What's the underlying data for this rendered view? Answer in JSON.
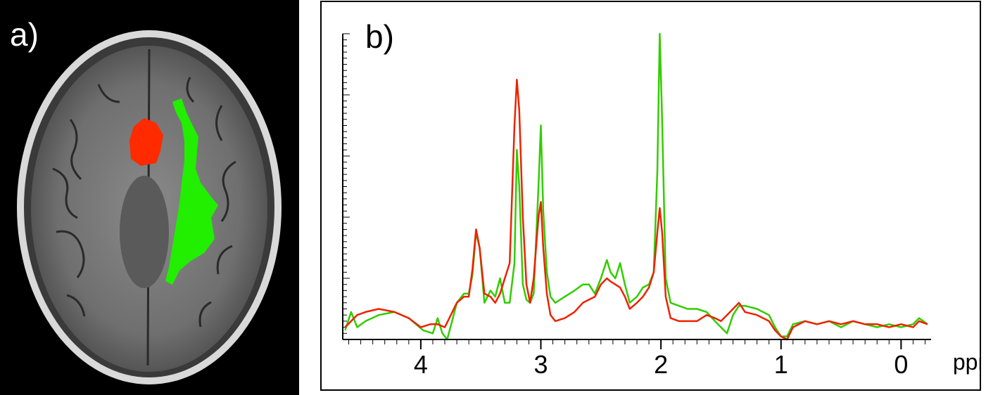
{
  "panel_a": {
    "label": "a)",
    "roi_colors": {
      "red": "#ff2a00",
      "green": "#22ee00"
    }
  },
  "panel_b": {
    "label": "b)"
  },
  "chart_data": {
    "type": "line",
    "title": "",
    "xlabel": "ppm",
    "ylabel": "",
    "x_reversed": true,
    "xlim": [
      4.65,
      -0.25
    ],
    "ylim": [
      0,
      100
    ],
    "xticks": [
      4,
      3,
      2,
      1,
      0
    ],
    "series": [
      {
        "color": "#33cc00",
        "points": [
          [
            4.63,
            3
          ],
          [
            4.58,
            9
          ],
          [
            4.53,
            4
          ],
          [
            4.46,
            6
          ],
          [
            4.35,
            8
          ],
          [
            4.22,
            9
          ],
          [
            4.1,
            7
          ],
          [
            3.98,
            3
          ],
          [
            3.9,
            2
          ],
          [
            3.86,
            7
          ],
          [
            3.82,
            2
          ],
          [
            3.78,
            0
          ],
          [
            3.74,
            6
          ],
          [
            3.7,
            12
          ],
          [
            3.64,
            15
          ],
          [
            3.6,
            15
          ],
          [
            3.57,
            21
          ],
          [
            3.54,
            35
          ],
          [
            3.51,
            30
          ],
          [
            3.47,
            12
          ],
          [
            3.42,
            16
          ],
          [
            3.38,
            14
          ],
          [
            3.34,
            20
          ],
          [
            3.3,
            12
          ],
          [
            3.26,
            12
          ],
          [
            3.22,
            25
          ],
          [
            3.2,
            62
          ],
          [
            3.18,
            50
          ],
          [
            3.15,
            18
          ],
          [
            3.12,
            13
          ],
          [
            3.09,
            12
          ],
          [
            3.06,
            15
          ],
          [
            3.02,
            50
          ],
          [
            3.0,
            70
          ],
          [
            2.98,
            42
          ],
          [
            2.95,
            22
          ],
          [
            2.92,
            14
          ],
          [
            2.88,
            12
          ],
          [
            2.8,
            14
          ],
          [
            2.72,
            16
          ],
          [
            2.65,
            18
          ],
          [
            2.6,
            18
          ],
          [
            2.55,
            15
          ],
          [
            2.5,
            20
          ],
          [
            2.45,
            26
          ],
          [
            2.42,
            22
          ],
          [
            2.38,
            20
          ],
          [
            2.34,
            25
          ],
          [
            2.3,
            18
          ],
          [
            2.26,
            12
          ],
          [
            2.2,
            14
          ],
          [
            2.15,
            17
          ],
          [
            2.1,
            18
          ],
          [
            2.06,
            22
          ],
          [
            2.03,
            55
          ],
          [
            2.01,
            100
          ],
          [
            1.99,
            72
          ],
          [
            1.96,
            20
          ],
          [
            1.92,
            12
          ],
          [
            1.85,
            11
          ],
          [
            1.78,
            10
          ],
          [
            1.7,
            10
          ],
          [
            1.62,
            9
          ],
          [
            1.55,
            6
          ],
          [
            1.5,
            4
          ],
          [
            1.45,
            2
          ],
          [
            1.4,
            8
          ],
          [
            1.35,
            11
          ],
          [
            1.3,
            11
          ],
          [
            1.2,
            10
          ],
          [
            1.1,
            8
          ],
          [
            1.05,
            4
          ],
          [
            1.0,
            1
          ],
          [
            0.95,
            1
          ],
          [
            0.9,
            5
          ],
          [
            0.8,
            6
          ],
          [
            0.7,
            5
          ],
          [
            0.6,
            6
          ],
          [
            0.5,
            4
          ],
          [
            0.4,
            6
          ],
          [
            0.3,
            5
          ],
          [
            0.2,
            4
          ],
          [
            0.1,
            5
          ],
          [
            0.0,
            4
          ],
          [
            -0.1,
            5
          ],
          [
            -0.15,
            7
          ],
          [
            -0.22,
            5
          ]
        ]
      },
      {
        "color": "#ee2200",
        "points": [
          [
            4.63,
            4
          ],
          [
            4.58,
            6
          ],
          [
            4.53,
            8
          ],
          [
            4.46,
            9
          ],
          [
            4.35,
            10
          ],
          [
            4.22,
            9
          ],
          [
            4.1,
            7
          ],
          [
            4.0,
            4
          ],
          [
            3.92,
            5
          ],
          [
            3.86,
            5
          ],
          [
            3.8,
            4
          ],
          [
            3.75,
            8
          ],
          [
            3.7,
            12
          ],
          [
            3.64,
            14
          ],
          [
            3.6,
            14
          ],
          [
            3.57,
            23
          ],
          [
            3.54,
            36
          ],
          [
            3.51,
            30
          ],
          [
            3.47,
            15
          ],
          [
            3.42,
            14
          ],
          [
            3.38,
            12
          ],
          [
            3.34,
            15
          ],
          [
            3.3,
            20
          ],
          [
            3.26,
            25
          ],
          [
            3.22,
            70
          ],
          [
            3.2,
            85
          ],
          [
            3.18,
            75
          ],
          [
            3.15,
            40
          ],
          [
            3.12,
            18
          ],
          [
            3.09,
            12
          ],
          [
            3.06,
            20
          ],
          [
            3.02,
            40
          ],
          [
            3.0,
            45
          ],
          [
            2.98,
            30
          ],
          [
            2.95,
            15
          ],
          [
            2.92,
            8
          ],
          [
            2.88,
            6
          ],
          [
            2.8,
            7
          ],
          [
            2.72,
            9
          ],
          [
            2.65,
            12
          ],
          [
            2.6,
            13
          ],
          [
            2.55,
            14
          ],
          [
            2.5,
            18
          ],
          [
            2.45,
            20
          ],
          [
            2.42,
            19
          ],
          [
            2.38,
            18
          ],
          [
            2.34,
            17
          ],
          [
            2.3,
            14
          ],
          [
            2.26,
            10
          ],
          [
            2.2,
            12
          ],
          [
            2.15,
            14
          ],
          [
            2.1,
            17
          ],
          [
            2.06,
            22
          ],
          [
            2.03,
            35
          ],
          [
            2.01,
            43
          ],
          [
            1.99,
            35
          ],
          [
            1.96,
            14
          ],
          [
            1.92,
            7
          ],
          [
            1.85,
            6
          ],
          [
            1.78,
            6
          ],
          [
            1.7,
            6
          ],
          [
            1.62,
            8
          ],
          [
            1.55,
            7
          ],
          [
            1.5,
            6
          ],
          [
            1.45,
            8
          ],
          [
            1.4,
            10
          ],
          [
            1.35,
            12
          ],
          [
            1.3,
            9
          ],
          [
            1.2,
            8
          ],
          [
            1.1,
            6
          ],
          [
            1.05,
            3
          ],
          [
            1.0,
            1
          ],
          [
            0.95,
            0
          ],
          [
            0.9,
            4
          ],
          [
            0.8,
            6
          ],
          [
            0.7,
            5
          ],
          [
            0.6,
            6
          ],
          [
            0.5,
            5
          ],
          [
            0.4,
            6
          ],
          [
            0.3,
            5
          ],
          [
            0.2,
            5
          ],
          [
            0.1,
            4
          ],
          [
            0.0,
            5
          ],
          [
            -0.1,
            4
          ],
          [
            -0.15,
            6
          ],
          [
            -0.22,
            5
          ]
        ]
      }
    ]
  }
}
